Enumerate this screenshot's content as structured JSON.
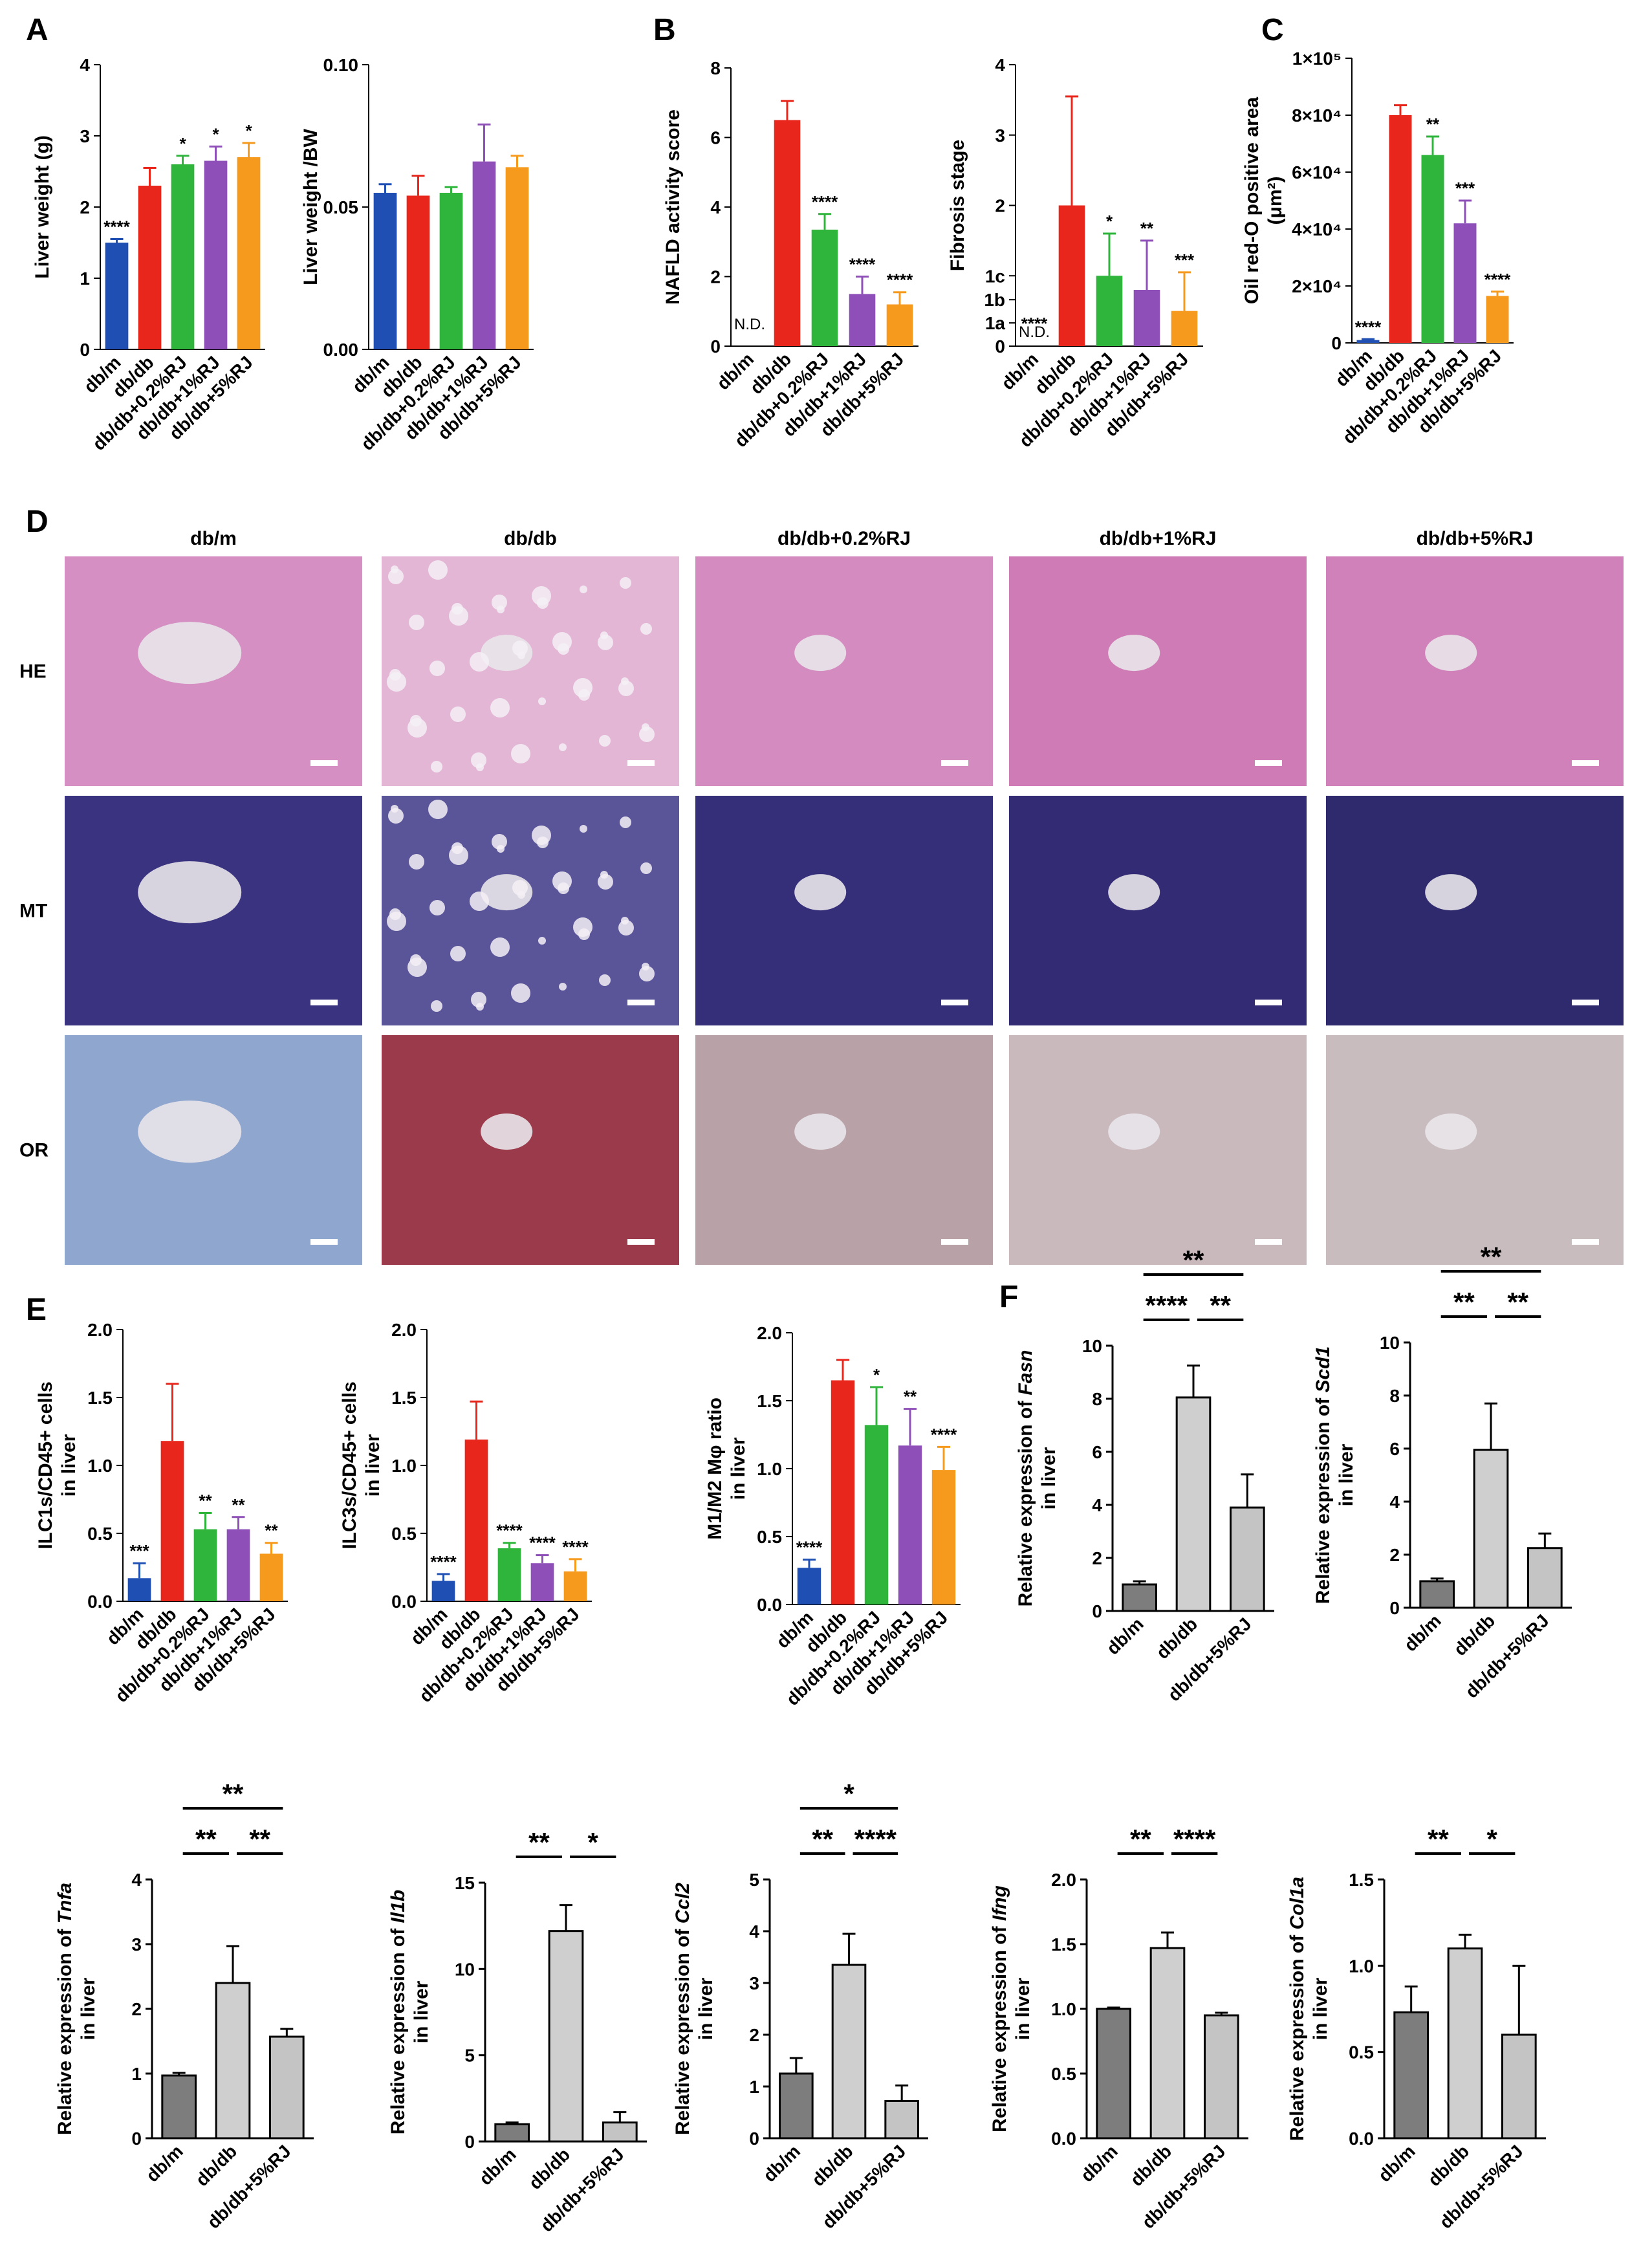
{
  "panels": {
    "A": "A",
    "B": "B",
    "C": "C",
    "D": "D",
    "E": "E",
    "F": "F"
  },
  "colors": {
    "db_m": "#1f4fb3",
    "db_db": "#e8261c",
    "rj02": "#2fb53c",
    "rj1": "#8e4fb8",
    "rj5": "#f59a1c",
    "f_dbm": "#7d7d7d",
    "f_dbdb": "#cfcfcf",
    "f_rj": "#c4c4c4"
  },
  "histology": {
    "columns": [
      "db/m",
      "db/db",
      "db/db+0.2%RJ",
      "db/db+1%RJ",
      "db/db+5%RJ"
    ],
    "rows": [
      {
        "label": "HE",
        "tints": [
          "#d58fc2",
          "#e3b6d6",
          "#d48bc0",
          "#cf7cb6",
          "#d181b9"
        ]
      },
      {
        "label": "MT",
        "tints": [
          "#3a3380",
          "#5a5598",
          "#352f7a",
          "#332c74",
          "#2f2a6e"
        ]
      },
      {
        "label": "OR",
        "tints": [
          "#8fa6cf",
          "#9b3a4a",
          "#b8a2a8",
          "#c9b9bd",
          "#c8bcbf"
        ]
      }
    ]
  },
  "chart_data": [
    {
      "id": "A1",
      "type": "bar",
      "panel": "A",
      "categories": [
        "db/m",
        "db/db",
        "db/db+0.2%RJ",
        "db/db+1%RJ",
        "db/db+5%RJ"
      ],
      "values": [
        1.5,
        2.3,
        2.6,
        2.65,
        2.7
      ],
      "errors": [
        0.05,
        0.25,
        0.12,
        0.2,
        0.2
      ],
      "significance": [
        "****",
        "",
        "*",
        "*",
        "*"
      ],
      "ylabel": "Liver weight (g)",
      "ylim": [
        0,
        4
      ],
      "yticks": [
        "0",
        "1",
        "2",
        "3",
        "4"
      ]
    },
    {
      "id": "A2",
      "type": "bar",
      "panel": "A",
      "categories": [
        "db/m",
        "db/db",
        "db/db+0.2%RJ",
        "db/db+1%RJ",
        "db/db+5%RJ"
      ],
      "values": [
        0.055,
        0.054,
        0.055,
        0.066,
        0.064
      ],
      "errors": [
        0.003,
        0.007,
        0.002,
        0.013,
        0.004
      ],
      "significance": [
        "",
        "",
        "",
        "",
        ""
      ],
      "ylabel": "Liver weight /BW",
      "ylim": [
        0,
        0.1
      ],
      "yticks": [
        "0.00",
        "0.05",
        "0.10"
      ]
    },
    {
      "id": "B1",
      "type": "bar",
      "panel": "B",
      "categories": [
        "db/m",
        "db/db",
        "db/db+0.2%RJ",
        "db/db+1%RJ",
        "db/db+5%RJ"
      ],
      "values": [
        0,
        6.5,
        3.35,
        1.5,
        1.2
      ],
      "errors": [
        0,
        0.55,
        0.45,
        0.5,
        0.35
      ],
      "significance": [
        "N.D.",
        "",
        "****",
        "****",
        "****"
      ],
      "ylabel": "NAFLD activity score",
      "ylim": [
        0,
        8
      ],
      "yticks": [
        "0",
        "2",
        "4",
        "6",
        "8"
      ]
    },
    {
      "id": "B2",
      "type": "bar",
      "panel": "B",
      "categories": [
        "db/m",
        "db/db",
        "db/db+0.2%RJ",
        "db/db+1%RJ",
        "db/db+5%RJ"
      ],
      "values": [
        0,
        2.0,
        1.0,
        0.8,
        0.5
      ],
      "errors": [
        0,
        1.55,
        0.6,
        0.7,
        0.55
      ],
      "significance": [
        "****",
        "",
        "*",
        "**",
        "***"
      ],
      "nd_label": "N.D.",
      "ylabel": "Fibrosis stage",
      "ylim": [
        0,
        4
      ],
      "yticks": [
        "0",
        "1a",
        "1b",
        "1c",
        "2",
        "3",
        "4"
      ]
    },
    {
      "id": "C1",
      "type": "bar",
      "panel": "C",
      "categories": [
        "db/m",
        "db/db",
        "db/db+0.2%RJ",
        "db/db+1%RJ",
        "db/db+5%RJ"
      ],
      "values": [
        1000,
        80000,
        66000,
        42000,
        16500
      ],
      "errors": [
        300,
        3500,
        6500,
        8000,
        1500
      ],
      "significance": [
        "****",
        "",
        "**",
        "***",
        "****"
      ],
      "ylabel": "Oil red-O positive area",
      "ylabel2": "(μm²)",
      "ylim": [
        0,
        100000
      ],
      "yticks": [
        "0",
        "2×10⁴",
        "4×10⁴",
        "6×10⁴",
        "8×10⁴",
        "1×10⁵"
      ]
    },
    {
      "id": "E1",
      "type": "bar",
      "panel": "E",
      "categories": [
        "db/m",
        "db/db",
        "db/db+0.2%RJ",
        "db/db+1%RJ",
        "db/db+5%RJ"
      ],
      "values": [
        0.17,
        1.18,
        0.53,
        0.53,
        0.35
      ],
      "errors": [
        0.11,
        0.42,
        0.12,
        0.09,
        0.08
      ],
      "significance": [
        "***",
        "",
        "**",
        "**",
        "**"
      ],
      "ylabel": "ILC1s/CD45+ cells",
      "ylabel2": "in liver",
      "ylim": [
        0,
        2
      ],
      "yticks": [
        "0.0",
        "0.5",
        "1.0",
        "1.5",
        "2.0"
      ]
    },
    {
      "id": "E2",
      "type": "bar",
      "panel": "E",
      "categories": [
        "db/m",
        "db/db",
        "db/db+0.2%RJ",
        "db/db+1%RJ",
        "db/db+5%RJ"
      ],
      "values": [
        0.15,
        1.19,
        0.39,
        0.28,
        0.22
      ],
      "errors": [
        0.05,
        0.28,
        0.04,
        0.06,
        0.09
      ],
      "significance": [
        "****",
        "",
        "****",
        "****",
        "****"
      ],
      "ylabel": "ILC3s/CD45+ cells",
      "ylabel2": "in liver",
      "ylim": [
        0,
        2
      ],
      "yticks": [
        "0.0",
        "0.5",
        "1.0",
        "1.5",
        "2.0"
      ]
    },
    {
      "id": "E3",
      "type": "bar",
      "panel": "E",
      "categories": [
        "db/m",
        "db/db",
        "db/db+0.2%RJ",
        "db/db+1%RJ",
        "db/db+5%RJ"
      ],
      "values": [
        0.27,
        1.65,
        1.32,
        1.17,
        0.99
      ],
      "errors": [
        0.06,
        0.15,
        0.28,
        0.27,
        0.17
      ],
      "significance": [
        "****",
        "",
        "*",
        "**",
        "****"
      ],
      "ylabel": "M1/M2 Mφ ratio",
      "ylabel2": "in liver",
      "ylim": [
        0,
        2
      ],
      "yticks": [
        "0.0",
        "0.5",
        "1.0",
        "1.5",
        "2.0"
      ]
    },
    {
      "id": "F1",
      "type": "bar",
      "panel": "F",
      "categories": [
        "db/m",
        "db/db",
        "db/db+5%RJ"
      ],
      "values": [
        1.0,
        8.05,
        3.9
      ],
      "errors": [
        0.12,
        1.2,
        1.25
      ],
      "ylabel_pre": "Relative expression of ",
      "gene": "Fasn",
      "ylabel2": "in liver",
      "ylim": [
        0,
        10
      ],
      "yticks": [
        "0",
        "2",
        "4",
        "6",
        "8",
        "10"
      ],
      "brackets": [
        {
          "from": 0,
          "to": 2,
          "label": "**"
        },
        {
          "from": 0,
          "to": 1,
          "label": "****"
        },
        {
          "from": 1,
          "to": 2,
          "label": "**"
        }
      ]
    },
    {
      "id": "F2",
      "type": "bar",
      "panel": "F",
      "categories": [
        "db/m",
        "db/db",
        "db/db+5%RJ"
      ],
      "values": [
        1.0,
        5.95,
        2.25
      ],
      "errors": [
        0.1,
        1.75,
        0.55
      ],
      "ylabel_pre": "Relative expression of ",
      "gene": "Scd1",
      "ylabel2": "in liver",
      "ylim": [
        0,
        10
      ],
      "yticks": [
        "0",
        "2",
        "4",
        "6",
        "8",
        "10"
      ],
      "brackets": [
        {
          "from": 0,
          "to": 2,
          "label": "**"
        },
        {
          "from": 0,
          "to": 1,
          "label": "**"
        },
        {
          "from": 1,
          "to": 2,
          "label": "**"
        }
      ]
    },
    {
      "id": "F3",
      "type": "bar",
      "panel": "F",
      "categories": [
        "db/m",
        "db/db",
        "db/db+5%RJ"
      ],
      "values": [
        0.97,
        2.4,
        1.57
      ],
      "errors": [
        0.04,
        0.57,
        0.12
      ],
      "ylabel_pre": "Relative expression of ",
      "gene": "Tnfa",
      "ylabel2": "in liver",
      "ylim": [
        0,
        4
      ],
      "yticks": [
        "0",
        "1",
        "2",
        "3",
        "4"
      ],
      "brackets": [
        {
          "from": 0,
          "to": 2,
          "label": "**"
        },
        {
          "from": 0,
          "to": 1,
          "label": "**"
        },
        {
          "from": 1,
          "to": 2,
          "label": "**"
        }
      ]
    },
    {
      "id": "F4",
      "type": "bar",
      "panel": "F",
      "categories": [
        "db/m",
        "db/db",
        "db/db+5%RJ"
      ],
      "values": [
        1.0,
        12.2,
        1.1
      ],
      "errors": [
        0.1,
        1.5,
        0.6
      ],
      "ylabel_pre": "Relative expression of ",
      "gene": "Il1b",
      "ylabel2": "in liver",
      "ylim": [
        0,
        15
      ],
      "yticks": [
        "0",
        "5",
        "10",
        "15"
      ],
      "brackets": [
        {
          "from": 0,
          "to": 1,
          "label": "**"
        },
        {
          "from": 1,
          "to": 2,
          "label": "*"
        }
      ]
    },
    {
      "id": "F5",
      "type": "bar",
      "panel": "F",
      "categories": [
        "db/m",
        "db/db",
        "db/db+5%RJ"
      ],
      "values": [
        1.25,
        3.35,
        0.72
      ],
      "errors": [
        0.3,
        0.6,
        0.3
      ],
      "ylabel_pre": "Relative expression of ",
      "gene": "Ccl2",
      "ylabel2": "in liver",
      "ylim": [
        0,
        5
      ],
      "yticks": [
        "0",
        "1",
        "2",
        "3",
        "4",
        "5"
      ],
      "brackets": [
        {
          "from": 0,
          "to": 2,
          "label": "*"
        },
        {
          "from": 0,
          "to": 1,
          "label": "**"
        },
        {
          "from": 1,
          "to": 2,
          "label": "****"
        }
      ]
    },
    {
      "id": "F6",
      "type": "bar",
      "panel": "F",
      "categories": [
        "db/m",
        "db/db",
        "db/db+5%RJ"
      ],
      "values": [
        1.0,
        1.47,
        0.95
      ],
      "errors": [
        0.01,
        0.12,
        0.02
      ],
      "ylabel_pre": "Relative expression of ",
      "gene": "Ifng",
      "ylabel2": "in liver",
      "ylim": [
        0,
        2
      ],
      "yticks": [
        "0.0",
        "0.5",
        "1.0",
        "1.5",
        "2.0"
      ],
      "brackets": [
        {
          "from": 0,
          "to": 1,
          "label": "**"
        },
        {
          "from": 1,
          "to": 2,
          "label": "****"
        }
      ]
    },
    {
      "id": "F7",
      "type": "bar",
      "panel": "F",
      "categories": [
        "db/m",
        "db/db",
        "db/db+5%RJ"
      ],
      "values": [
        0.73,
        1.1,
        0.6
      ],
      "errors": [
        0.15,
        0.08,
        0.4
      ],
      "ylabel_pre": "Relative expression of ",
      "gene": "Col1a",
      "ylabel2": "in liver",
      "ylim": [
        0,
        1.5
      ],
      "yticks": [
        "0.0",
        "0.5",
        "1.0",
        "1.5"
      ],
      "brackets": [
        {
          "from": 0,
          "to": 1,
          "label": "**"
        },
        {
          "from": 1,
          "to": 2,
          "label": "*"
        }
      ]
    }
  ]
}
